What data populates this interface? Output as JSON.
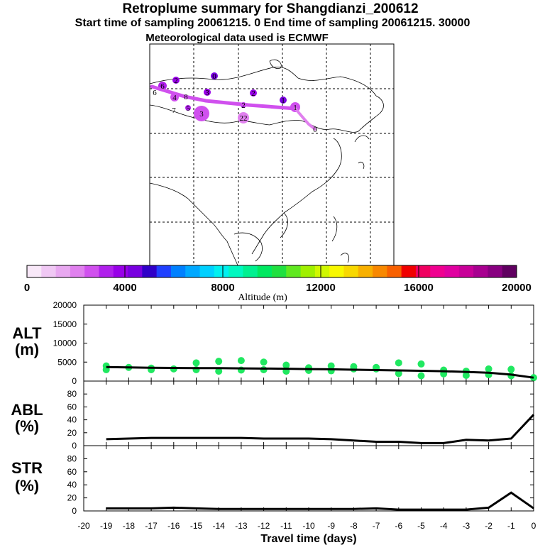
{
  "header": {
    "title": "Retroplume summary for Shangdianzi_200612",
    "sampling": "Start time of sampling 20061215.     0     End time of sampling 20061215. 30000",
    "met": "Meteorological data used is ECMWF"
  },
  "colorbar": {
    "label": "Altitude (m)",
    "ticks": [
      "0",
      "4000",
      "8000",
      "12000",
      "16000",
      "20000"
    ],
    "colors": [
      "#f8e8f8",
      "#f0c8f4",
      "#e8a8f0",
      "#e080ee",
      "#d050ee",
      "#b020ec",
      "#9800e8",
      "#7800e0",
      "#3000c8",
      "#2040ff",
      "#0080ff",
      "#00a8ff",
      "#00d0ff",
      "#00f0f0",
      "#00f8c0",
      "#00f090",
      "#00e860",
      "#20e040",
      "#60e820",
      "#a0f000",
      "#d0f800",
      "#f8f800",
      "#f8d800",
      "#f8b000",
      "#f88800",
      "#f86000",
      "#f00000",
      "#f00060",
      "#f00090",
      "#e000a0",
      "#c80098",
      "#a80090",
      "#880080",
      "#600060"
    ]
  },
  "map": {
    "days": [
      "6",
      "4",
      "5",
      "3",
      "2",
      "22",
      "1",
      "0",
      "2",
      "3",
      "2",
      "6",
      "7",
      "8",
      "0",
      "1"
    ]
  },
  "chart_data": [
    {
      "type": "line",
      "name": "ALT",
      "title": "ALT",
      "ylabel": "(m)",
      "ylim": [
        0,
        20000
      ],
      "yticks": [
        "0",
        "5000",
        "10000",
        "15000",
        "20000"
      ],
      "x": [
        -19,
        -18,
        -17,
        -16,
        -15,
        -14,
        -13,
        -12,
        -11,
        -10,
        -9,
        -8,
        -7,
        -6,
        -5,
        -4,
        -3,
        -2,
        -1,
        0
      ],
      "values": [
        3700,
        3600,
        3500,
        3450,
        3400,
        3400,
        3350,
        3300,
        3250,
        3150,
        3100,
        3000,
        2900,
        2800,
        2700,
        2600,
        2400,
        2200,
        1700,
        900
      ],
      "scatter": [
        [
          -19,
          4000
        ],
        [
          -19,
          3000
        ],
        [
          -18,
          3600
        ],
        [
          -17,
          3400
        ],
        [
          -17,
          3000
        ],
        [
          -16,
          3200
        ],
        [
          -15,
          4800
        ],
        [
          -15,
          3000
        ],
        [
          -14,
          5200
        ],
        [
          -14,
          2600
        ],
        [
          -13,
          5400
        ],
        [
          -13,
          2900
        ],
        [
          -12,
          5000
        ],
        [
          -12,
          3000
        ],
        [
          -11,
          4200
        ],
        [
          -11,
          2600
        ],
        [
          -10,
          3500
        ],
        [
          -10,
          2800
        ],
        [
          -9,
          4000
        ],
        [
          -9,
          2700
        ],
        [
          -8,
          3800
        ],
        [
          -8,
          3200
        ],
        [
          -7,
          3600
        ],
        [
          -7,
          3200
        ],
        [
          -6,
          4800
        ],
        [
          -6,
          2000
        ],
        [
          -5,
          4500
        ],
        [
          -5,
          1400
        ],
        [
          -4,
          2900
        ],
        [
          -4,
          1900
        ],
        [
          -3,
          2600
        ],
        [
          -3,
          1500
        ],
        [
          -2,
          3200
        ],
        [
          -2,
          1700
        ],
        [
          -1,
          3100
        ],
        [
          -1,
          1400
        ],
        [
          0,
          900
        ]
      ]
    },
    {
      "type": "line",
      "name": "ABL",
      "title": "ABL",
      "ylabel": "(%)",
      "ylim": [
        0,
        100
      ],
      "yticks": [
        "0",
        "20",
        "40",
        "60",
        "80"
      ],
      "x": [
        -19,
        -18,
        -17,
        -16,
        -15,
        -14,
        -13,
        -12,
        -11,
        -10,
        -9,
        -8,
        -7,
        -6,
        -5,
        -4,
        -3,
        -2,
        -1,
        0
      ],
      "values": [
        10,
        11,
        12,
        12,
        12,
        12,
        12,
        11,
        11,
        11,
        10,
        8,
        6,
        6,
        4,
        4,
        9,
        8,
        11,
        48
      ]
    },
    {
      "type": "line",
      "name": "STR",
      "title": "STR",
      "ylabel": "(%)",
      "ylim": [
        0,
        100
      ],
      "yticks": [
        "0",
        "20",
        "40",
        "60",
        "80"
      ],
      "x": [
        -19,
        -18,
        -17,
        -16,
        -15,
        -14,
        -13,
        -12,
        -11,
        -10,
        -9,
        -8,
        -7,
        -6,
        -5,
        -4,
        -3,
        -2,
        -1,
        0
      ],
      "values": [
        4,
        4,
        4,
        5,
        4,
        3,
        3,
        3,
        3,
        3,
        3,
        3,
        4,
        2,
        2,
        2,
        2,
        5,
        28,
        4
      ],
      "xlabel": "Travel time (days)",
      "xticks": [
        "-20",
        "-19",
        "-18",
        "-17",
        "-16",
        "-15",
        "-14",
        "-13",
        "-12",
        "-11",
        "-10",
        "-9",
        "-8",
        "-7",
        "-6",
        "-5",
        "-4",
        "-3",
        "-2",
        "-1",
        "0"
      ]
    }
  ]
}
